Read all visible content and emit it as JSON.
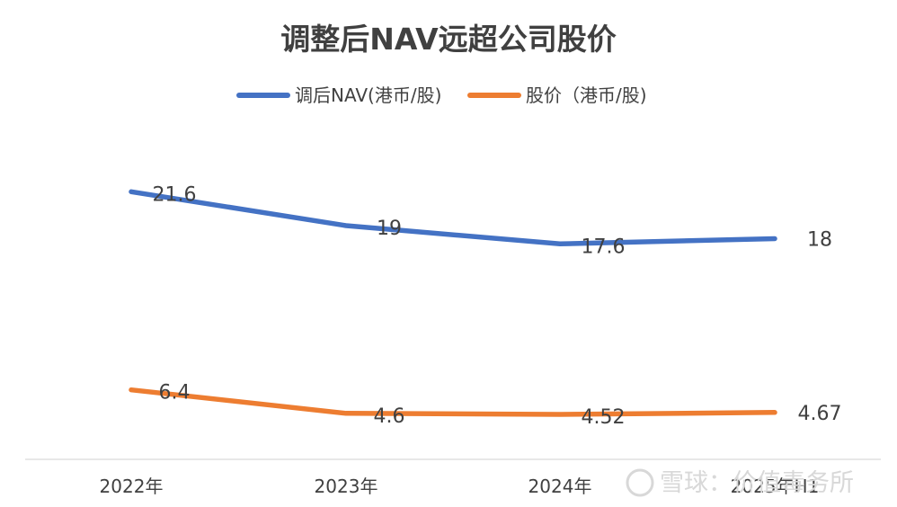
{
  "chart_data": {
    "type": "line",
    "title": "调整后NAV远超公司股价",
    "categories": [
      "2022年",
      "2023年",
      "2024年",
      "2025年H1"
    ],
    "series": [
      {
        "name": "调后NAV(港币/股)",
        "values": [
          21.6,
          19,
          17.6,
          18
        ],
        "labels": [
          "21.6",
          "19",
          "17.6",
          "18"
        ],
        "color": "#4472C4"
      },
      {
        "name": "股价（港币/股)",
        "values": [
          6.4,
          4.6,
          4.52,
          4.67
        ],
        "labels": [
          "6.4",
          "4.6",
          "4.52",
          "4.67"
        ],
        "color": "#ED7D31"
      }
    ],
    "legend_position": "top",
    "grid": false,
    "axis_color": "#d9d9d9"
  },
  "watermark": {
    "text": "雪球：价值毒务所"
  }
}
